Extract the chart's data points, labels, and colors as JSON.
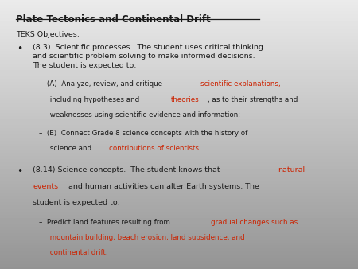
{
  "title": "Plate Tectonics and Continental Drift",
  "text_color": "#1a1a1a",
  "highlight_color": "#cc2200",
  "teks_label": "TEKS Objectives:",
  "bullet1_main": "(8.3)  Scientific processes.  The student uses critical thinking\nand scientific problem solving to make informed decisions.\nThe student is expected to:",
  "sub_A_line1_pre": "–  (A)  Analyze, review, and critique ",
  "sub_A_line1_red": "scientific explanations,",
  "sub_A_line2_pre": "     including hypotheses and ",
  "sub_A_line2_red": "theories",
  "sub_A_line2_post": ", as to their strengths and",
  "sub_A_line3": "     weaknesses using scientific evidence and information;",
  "sub_E_line1": "–  (E)  Connect Grade 8 science concepts with the history of",
  "sub_E_line2_pre": "     science and ",
  "sub_E_line2_red": "contributions of scientists.",
  "bullet2_line1_pre": "(8.14) Science concepts.  The student knows that ",
  "bullet2_line1_red": "natural",
  "bullet2_line2_red": "events",
  "bullet2_line2_post": " and human activities can alter Earth systems. The",
  "bullet2_line3": "student is expected to:",
  "sub_P_line1_pre": "–  Predict land features resulting from ",
  "sub_P_line1_red": "gradual changes such as",
  "sub_P_line2_red": "     mountain building, beach erosion, land subsidence, and",
  "sub_P_line3_red": "     continental drift;"
}
